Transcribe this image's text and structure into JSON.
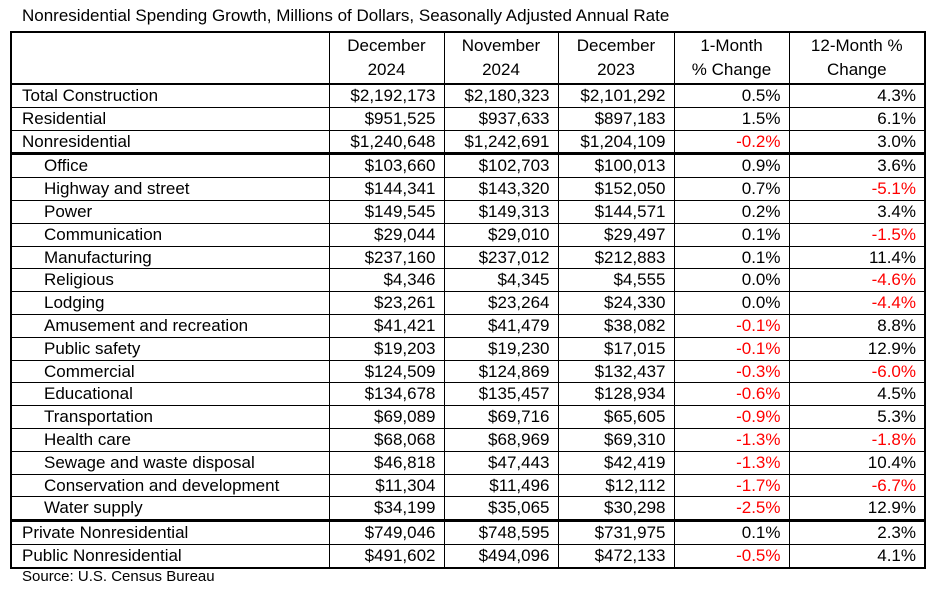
{
  "title": "Nonresidential Spending Growth, Millions of Dollars, Seasonally Adjusted Annual Rate",
  "source": "Source: U.S. Census Bureau",
  "colors": {
    "text": "#000000",
    "negative": "#ff0000",
    "border": "#000000",
    "background": "#ffffff"
  },
  "chart_data": {
    "type": "table",
    "title": "Nonresidential Spending Growth, Millions of Dollars, Seasonally Adjusted Annual Rate",
    "columns": [
      "",
      "December 2024",
      "November 2024",
      "December 2023",
      "1-Month % Change",
      "12-Month % Change"
    ],
    "rows": [
      [
        "Total Construction",
        "$2,192,173",
        "$2,180,323",
        "$2,101,292",
        "0.5%",
        "4.3%"
      ],
      [
        "Residential",
        "$951,525",
        "$937,633",
        "$897,183",
        "1.5%",
        "6.1%"
      ],
      [
        "Nonresidential",
        "$1,240,648",
        "$1,242,691",
        "$1,204,109",
        "-0.2%",
        "3.0%"
      ],
      [
        "Office",
        "$103,660",
        "$102,703",
        "$100,013",
        "0.9%",
        "3.6%"
      ],
      [
        "Highway and street",
        "$144,341",
        "$143,320",
        "$152,050",
        "0.7%",
        "-5.1%"
      ],
      [
        "Power",
        "$149,545",
        "$149,313",
        "$144,571",
        "0.2%",
        "3.4%"
      ],
      [
        "Communication",
        "$29,044",
        "$29,010",
        "$29,497",
        "0.1%",
        "-1.5%"
      ],
      [
        "Manufacturing",
        "$237,160",
        "$237,012",
        "$212,883",
        "0.1%",
        "11.4%"
      ],
      [
        "Religious",
        "$4,346",
        "$4,345",
        "$4,555",
        "0.0%",
        "-4.6%"
      ],
      [
        "Lodging",
        "$23,261",
        "$23,264",
        "$24,330",
        "0.0%",
        "-4.4%"
      ],
      [
        "Amusement and recreation",
        "$41,421",
        "$41,479",
        "$38,082",
        "-0.1%",
        "8.8%"
      ],
      [
        "Public safety",
        "$19,203",
        "$19,230",
        "$17,015",
        "-0.1%",
        "12.9%"
      ],
      [
        "Commercial",
        "$124,509",
        "$124,869",
        "$132,437",
        "-0.3%",
        "-6.0%"
      ],
      [
        "Educational",
        "$134,678",
        "$135,457",
        "$128,934",
        "-0.6%",
        "4.5%"
      ],
      [
        "Transportation",
        "$69,089",
        "$69,716",
        "$65,605",
        "-0.9%",
        "5.3%"
      ],
      [
        "Health care",
        "$68,068",
        "$68,969",
        "$69,310",
        "-1.3%",
        "-1.8%"
      ],
      [
        "Sewage and waste disposal",
        "$46,818",
        "$47,443",
        "$42,419",
        "-1.3%",
        "10.4%"
      ],
      [
        "Conservation and development",
        "$11,304",
        "$11,496",
        "$12,112",
        "-1.7%",
        "-6.7%"
      ],
      [
        "Water supply",
        "$34,199",
        "$35,065",
        "$30,298",
        "-2.5%",
        "12.9%"
      ],
      [
        "Private Nonresidential",
        "$749,046",
        "$748,595",
        "$731,975",
        "0.1%",
        "2.3%"
      ],
      [
        "Public Nonresidential",
        "$491,602",
        "$494,096",
        "$472,133",
        "-0.5%",
        "4.1%"
      ]
    ]
  },
  "table": {
    "headers": [
      "",
      "December\n2024",
      "November\n2024",
      "December\n2023",
      "1-Month\n% Change",
      "12-Month %\nChange"
    ],
    "rows": [
      {
        "label": "Total Construction",
        "indent": false,
        "thick_bottom": false,
        "values": [
          "$2,192,173",
          "$2,180,323",
          "$2,101,292",
          "0.5%",
          "4.3%"
        ]
      },
      {
        "label": "Residential",
        "indent": false,
        "thick_bottom": false,
        "values": [
          "$951,525",
          "$937,633",
          "$897,183",
          "1.5%",
          "6.1%"
        ]
      },
      {
        "label": "Nonresidential",
        "indent": false,
        "thick_bottom": true,
        "values": [
          "$1,240,648",
          "$1,242,691",
          "$1,204,109",
          "-0.2%",
          "3.0%"
        ]
      },
      {
        "label": "Office",
        "indent": true,
        "thick_bottom": false,
        "values": [
          "$103,660",
          "$102,703",
          "$100,013",
          "0.9%",
          "3.6%"
        ]
      },
      {
        "label": "Highway and street",
        "indent": true,
        "thick_bottom": false,
        "values": [
          "$144,341",
          "$143,320",
          "$152,050",
          "0.7%",
          "-5.1%"
        ]
      },
      {
        "label": "Power",
        "indent": true,
        "thick_bottom": false,
        "values": [
          "$149,545",
          "$149,313",
          "$144,571",
          "0.2%",
          "3.4%"
        ]
      },
      {
        "label": "Communication",
        "indent": true,
        "thick_bottom": false,
        "values": [
          "$29,044",
          "$29,010",
          "$29,497",
          "0.1%",
          "-1.5%"
        ]
      },
      {
        "label": "Manufacturing",
        "indent": true,
        "thick_bottom": false,
        "values": [
          "$237,160",
          "$237,012",
          "$212,883",
          "0.1%",
          "11.4%"
        ]
      },
      {
        "label": "Religious",
        "indent": true,
        "thick_bottom": false,
        "values": [
          "$4,346",
          "$4,345",
          "$4,555",
          "0.0%",
          "-4.6%"
        ]
      },
      {
        "label": "Lodging",
        "indent": true,
        "thick_bottom": false,
        "values": [
          "$23,261",
          "$23,264",
          "$24,330",
          "0.0%",
          "-4.4%"
        ]
      },
      {
        "label": "Amusement and recreation",
        "indent": true,
        "thick_bottom": false,
        "values": [
          "$41,421",
          "$41,479",
          "$38,082",
          "-0.1%",
          "8.8%"
        ]
      },
      {
        "label": "Public safety",
        "indent": true,
        "thick_bottom": false,
        "values": [
          "$19,203",
          "$19,230",
          "$17,015",
          "-0.1%",
          "12.9%"
        ]
      },
      {
        "label": "Commercial",
        "indent": true,
        "thick_bottom": false,
        "values": [
          "$124,509",
          "$124,869",
          "$132,437",
          "-0.3%",
          "-6.0%"
        ]
      },
      {
        "label": "Educational",
        "indent": true,
        "thick_bottom": false,
        "values": [
          "$134,678",
          "$135,457",
          "$128,934",
          "-0.6%",
          "4.5%"
        ]
      },
      {
        "label": "Transportation",
        "indent": true,
        "thick_bottom": false,
        "values": [
          "$69,089",
          "$69,716",
          "$65,605",
          "-0.9%",
          "5.3%"
        ]
      },
      {
        "label": "Health care",
        "indent": true,
        "thick_bottom": false,
        "values": [
          "$68,068",
          "$68,969",
          "$69,310",
          "-1.3%",
          "-1.8%"
        ]
      },
      {
        "label": "Sewage and waste disposal",
        "indent": true,
        "thick_bottom": false,
        "values": [
          "$46,818",
          "$47,443",
          "$42,419",
          "-1.3%",
          "10.4%"
        ]
      },
      {
        "label": "Conservation and development",
        "indent": true,
        "thick_bottom": false,
        "values": [
          "$11,304",
          "$11,496",
          "$12,112",
          "-1.7%",
          "-6.7%"
        ]
      },
      {
        "label": "Water supply",
        "indent": true,
        "thick_bottom": true,
        "values": [
          "$34,199",
          "$35,065",
          "$30,298",
          "-2.5%",
          "12.9%"
        ]
      },
      {
        "label": "Private Nonresidential",
        "indent": false,
        "thick_bottom": false,
        "values": [
          "$749,046",
          "$748,595",
          "$731,975",
          "0.1%",
          "2.3%"
        ]
      },
      {
        "label": "Public Nonresidential",
        "indent": false,
        "thick_bottom": false,
        "values": [
          "$491,602",
          "$494,096",
          "$472,133",
          "-0.5%",
          "4.1%"
        ]
      }
    ]
  }
}
